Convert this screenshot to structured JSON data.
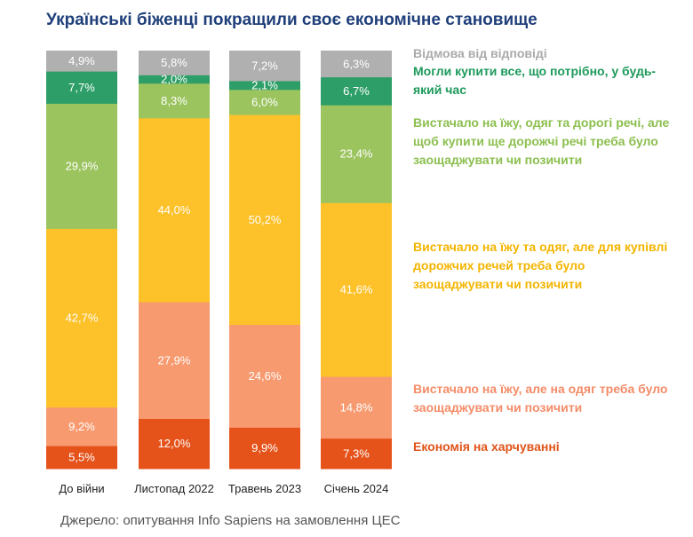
{
  "title": "Українські біженці покращили своє економічне становище",
  "source": "Джерело: опитування Info Sapiens на замовлення ЦЕС",
  "chart_data": {
    "type": "bar",
    "stacked": true,
    "normalized": true,
    "categories": [
      "До війни",
      "Листопад 2022",
      "Травень 2023",
      "Січень 2024"
    ],
    "series": [
      {
        "name": "Економія на харчуванні",
        "color": "#e5531b",
        "label_color": "#ffffff",
        "values": [
          5.5,
          12.0,
          9.9,
          7.3
        ],
        "labels": [
          "5,5%",
          "12,0%",
          "9,9%",
          "7,3%"
        ]
      },
      {
        "name": "Вистачало на їжу, але на одяг треба було заощаджувати чи позичити",
        "color": "#f79a70",
        "label_color": "#ffffff",
        "values": [
          9.2,
          27.9,
          24.6,
          14.8
        ],
        "labels": [
          "9,2%",
          "27,9%",
          "24,6%",
          "14,8%"
        ]
      },
      {
        "name": "Вистачало на їжу та одяг, але для купівлі дорожчих речей треба було заощаджувати чи позичити",
        "color": "#fdc12a",
        "label_color": "#ffffff",
        "values": [
          42.7,
          44.0,
          50.2,
          41.6
        ],
        "labels": [
          "42,7%",
          "44,0%",
          "50,2%",
          "41,6%"
        ]
      },
      {
        "name": "Вистачало на їжу, одяг та дорогі речі, але щоб купити ще дорожчі речі треба було заощаджувати чи позичити",
        "color": "#9bc45f",
        "label_color": "#ffffff",
        "values": [
          29.9,
          8.3,
          6.0,
          23.4
        ],
        "labels": [
          "29,9%",
          "8,3%",
          "6,0%",
          "23,4%"
        ]
      },
      {
        "name": "Могли купити все, що потрібно, у будь-який час",
        "color": "#2d9e67",
        "label_color": "#ffffff",
        "values": [
          7.7,
          2.0,
          2.1,
          6.7
        ],
        "labels": [
          "7,7%",
          "2,0%",
          "2,1%",
          "6,7%"
        ]
      },
      {
        "name": "Відмова від відповіді",
        "color": "#b0b0b0",
        "label_color": "#ffffff",
        "values": [
          4.9,
          5.8,
          7.2,
          6.3
        ],
        "labels": [
          "4,9%",
          "5,8%",
          "7,2%",
          "6,3%"
        ]
      }
    ],
    "legend": [
      {
        "name": "Відмова від відповіді",
        "color": "#aaaaaa"
      },
      {
        "name": "Могли купити все, що потрібно, у будь-який час",
        "color": "#1e9a5c"
      },
      {
        "name": "Вистачало на їжу, одяг та дорогі речі, але щоб купити ще дорожчі речі треба було заощаджувати чи позичити",
        "color": "#8cbf4f"
      },
      {
        "name": "Вистачало на їжу та одяг, але для купівлі дорожчих речей треба було заощаджувати чи позичити",
        "color": "#f3b500"
      },
      {
        "name": "Вистачало на їжу, але на одяг треба було заощаджувати чи позичити",
        "color": "#f48c68"
      },
      {
        "name": "Економія на харчуванні",
        "color": "#e0541a"
      }
    ]
  }
}
